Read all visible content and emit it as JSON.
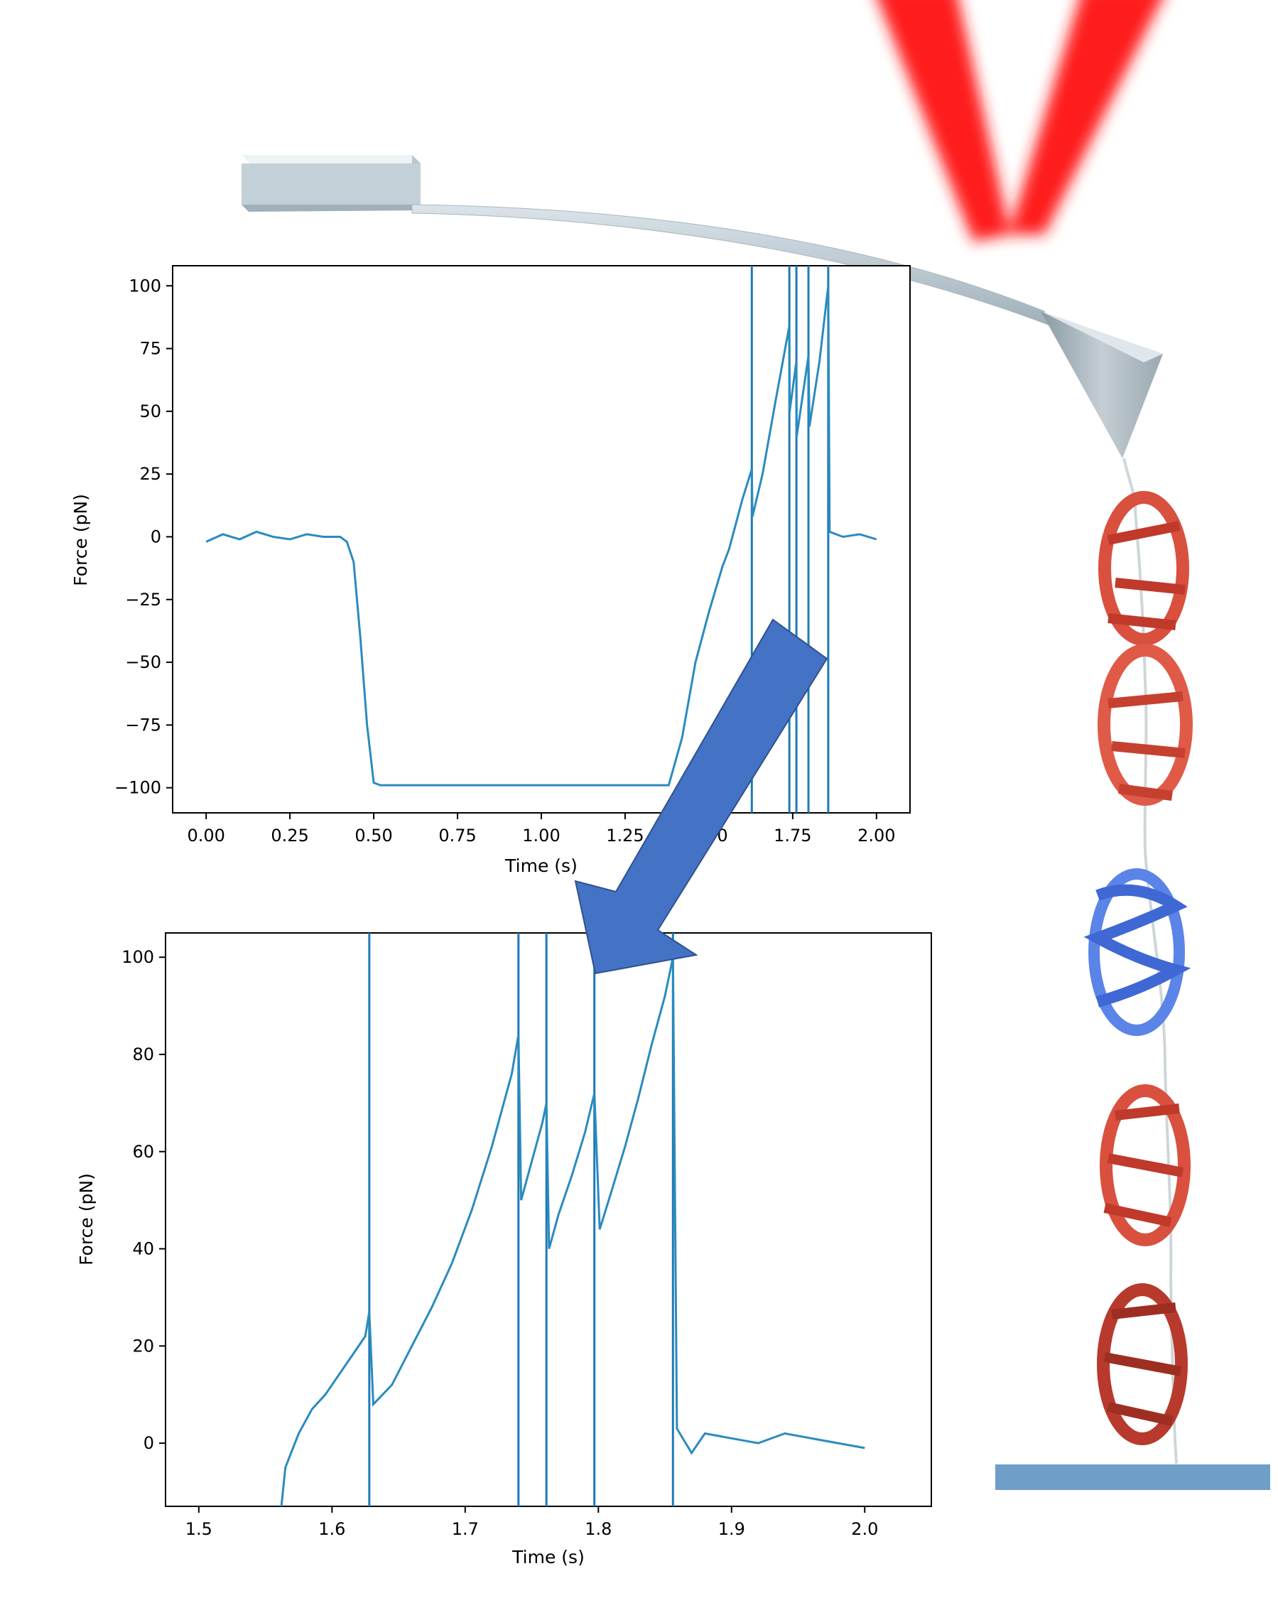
{
  "colors": {
    "trace": "#2a8bbf",
    "eventLine": "#1f7ab7",
    "arrow": "#4472c4",
    "laser": "#ff1a1a",
    "beta": "#d9503f",
    "helix": "#5b84e8",
    "substrate": "#6f9fc8"
  },
  "chart_data": [
    {
      "type": "line",
      "title": "",
      "xlabel": "Time (s)",
      "ylabel": "Force (pN)",
      "xlim": [
        -0.1,
        2.1
      ],
      "ylim": [
        -110,
        108
      ],
      "xticks": [
        "0.00",
        "0.25",
        "0.50",
        "0.75",
        "1.00",
        "1.25",
        "1.50",
        "1.75",
        "2.00"
      ],
      "yticks": [
        "100",
        "75",
        "50",
        "25",
        "0",
        "−25",
        "−50",
        "−75",
        "−100"
      ],
      "grid": false,
      "event_lines_x": [
        1.628,
        1.74,
        1.761,
        1.797,
        1.856
      ],
      "series": [
        {
          "x": [
            0.0,
            0.05,
            0.1,
            0.15,
            0.2,
            0.25,
            0.3,
            0.35,
            0.4,
            0.42,
            0.44,
            0.46,
            0.48,
            0.5,
            0.52,
            0.6,
            0.75,
            1.0,
            1.25,
            1.38,
            1.42,
            1.46,
            1.5,
            1.54,
            1.56,
            1.58,
            1.6,
            1.628,
            1.63,
            1.66,
            1.7,
            1.74,
            1.741,
            1.761,
            1.762,
            1.797,
            1.8,
            1.83,
            1.856,
            1.86,
            1.9,
            1.95,
            2.0
          ],
          "y": [
            -2,
            1,
            -1,
            2,
            0,
            -1,
            1,
            0,
            0,
            -2,
            -10,
            -40,
            -75,
            -98,
            -99,
            -99,
            -99,
            -99,
            -99,
            -99,
            -80,
            -50,
            -30,
            -12,
            -5,
            5,
            15,
            27,
            8,
            25,
            55,
            84,
            50,
            70,
            40,
            72,
            44,
            70,
            100,
            2,
            0,
            1,
            -1
          ]
        }
      ]
    },
    {
      "type": "line",
      "title": "",
      "xlabel": "Time (s)",
      "ylabel": "Force (pN)",
      "xlim": [
        1.475,
        2.05
      ],
      "ylim": [
        -13,
        105
      ],
      "xticks": [
        "1.5",
        "1.6",
        "1.7",
        "1.8",
        "1.9",
        "2.0"
      ],
      "yticks": [
        "100",
        "80",
        "60",
        "40",
        "20",
        "0"
      ],
      "grid": false,
      "event_lines_x": [
        1.628,
        1.74,
        1.761,
        1.797,
        1.856
      ],
      "series": [
        {
          "x": [
            1.562,
            1.565,
            1.575,
            1.585,
            1.595,
            1.605,
            1.615,
            1.625,
            1.628,
            1.631,
            1.645,
            1.66,
            1.675,
            1.69,
            1.705,
            1.72,
            1.735,
            1.74,
            1.742,
            1.75,
            1.758,
            1.761,
            1.763,
            1.77,
            1.78,
            1.79,
            1.797,
            1.801,
            1.81,
            1.82,
            1.83,
            1.84,
            1.85,
            1.856,
            1.859,
            1.87,
            1.88,
            1.9,
            1.92,
            1.94,
            1.96,
            1.98,
            2.0
          ],
          "y": [
            -13,
            -5,
            2,
            7,
            10,
            14,
            18,
            22,
            27,
            8,
            12,
            20,
            28,
            37,
            48,
            61,
            76,
            84,
            50,
            58,
            66,
            70,
            40,
            47,
            55,
            64,
            72,
            44,
            52,
            61,
            71,
            82,
            92,
            100,
            3,
            -2,
            2,
            1,
            0,
            2,
            1,
            0,
            -1
          ]
        }
      ]
    }
  ]
}
